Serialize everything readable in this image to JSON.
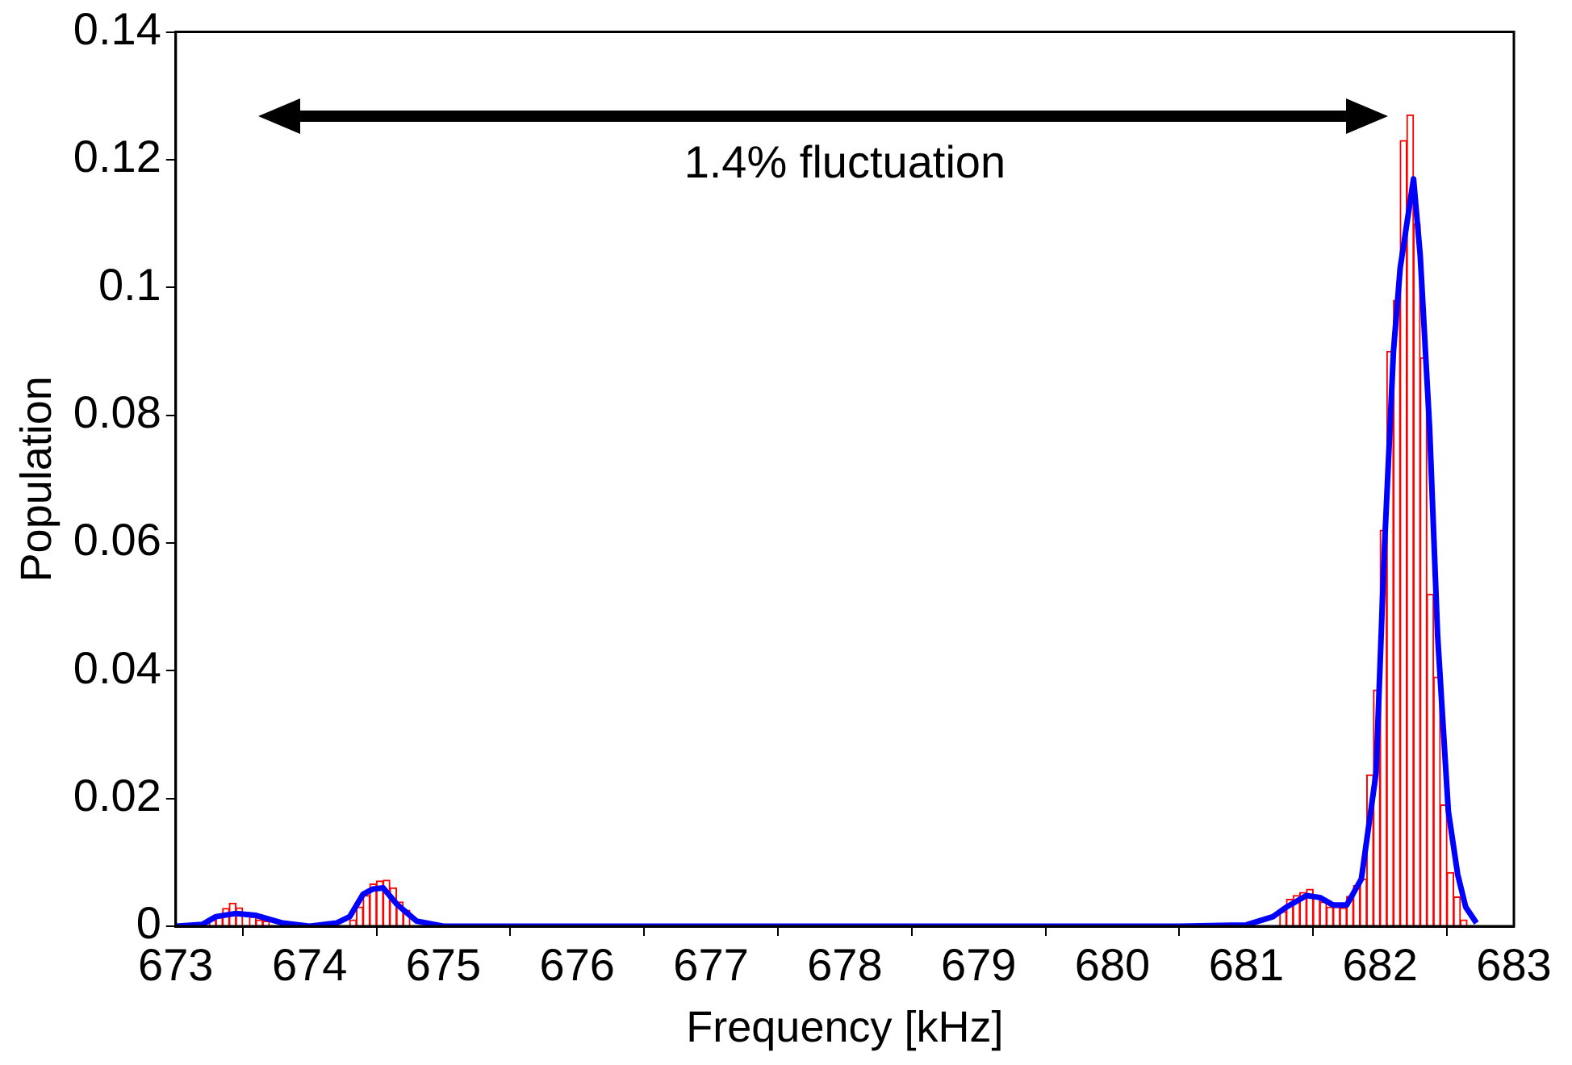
{
  "chart_data": {
    "type": "histogram",
    "xlabel": "Frequency [kHz]",
    "ylabel": "Population",
    "annotations": [
      "1.4% fluctuation"
    ],
    "xlim": [
      673,
      683
    ],
    "xticks": [
      673,
      674,
      675,
      676,
      677,
      678,
      679,
      680,
      681,
      682,
      683
    ],
    "ylim": [
      0,
      0.14
    ],
    "yticks": [
      0,
      0.02,
      0.04,
      0.06,
      0.08,
      0.1,
      0.12,
      0.14
    ],
    "marker": "none",
    "series": [
      {
        "color": "#ff0000",
        "bins": [
          673,
          673.05,
          673.1,
          673.15,
          673.2,
          673.25,
          673.3,
          673.35,
          673.4,
          673.45,
          673.5,
          673.55,
          673.6,
          673.65,
          673.7,
          673.75,
          673.8,
          673.85,
          673.9,
          673.95,
          674,
          674.05,
          674.1,
          674.15,
          674.2,
          674.25,
          674.3,
          674.35,
          674.4,
          674.45,
          674.5,
          674.55,
          674.6,
          674.65,
          674.7,
          674.75,
          674.8,
          674.85,
          674.9,
          674.95,
          675,
          675.05,
          675.1,
          675.15,
          675.2,
          675.25,
          675.3,
          675.35,
          675.4,
          675.45,
          675.5,
          675.55,
          675.6,
          675.65,
          675.7,
          675.75,
          675.8,
          675.85,
          675.9,
          675.95,
          676,
          676.05,
          676.1,
          676.15,
          676.2,
          676.25,
          676.3,
          676.35,
          676.4,
          676.45,
          676.5,
          676.55,
          676.6,
          676.65,
          676.7,
          676.75,
          676.8,
          676.85,
          676.9,
          676.95,
          677,
          677.05,
          677.1,
          677.15,
          677.2,
          677.25,
          677.3,
          677.35,
          677.4,
          677.45,
          677.5,
          677.55,
          677.6,
          677.65,
          677.7,
          677.75,
          677.8,
          677.85,
          677.9,
          677.95,
          678,
          678.05,
          678.1,
          678.15,
          678.2,
          678.25,
          678.3,
          678.35,
          678.4,
          678.45,
          678.5,
          678.55,
          678.6,
          678.65,
          678.7,
          678.75,
          678.8,
          678.85,
          678.9,
          678.95,
          679,
          679.05,
          679.1,
          679.15,
          679.2,
          679.25,
          679.3,
          679.35,
          679.4,
          679.45,
          679.5,
          679.55,
          679.6,
          679.65,
          679.7,
          679.75,
          679.8,
          679.85,
          679.9,
          679.95,
          680,
          680.05,
          680.1,
          680.15,
          680.2,
          680.25,
          680.3,
          680.35,
          680.4,
          680.45,
          680.5,
          680.55,
          680.6,
          680.65,
          680.7,
          680.75,
          680.8,
          680.85,
          680.9,
          680.95,
          681,
          681.05,
          681.1,
          681.15,
          681.2,
          681.25,
          681.3,
          681.35,
          681.4,
          681.45,
          681.5,
          681.55,
          681.6,
          681.65,
          681.7,
          681.75,
          681.8,
          681.85,
          681.9,
          681.95,
          682,
          682.05,
          682.1,
          682.15,
          682.2,
          682.25,
          682.3,
          682.35,
          682.4,
          682.45,
          682.5,
          682.55,
          682.6,
          682.65,
          682.7
        ],
        "values": [
          null,
          null,
          null,
          null,
          null,
          0.001,
          0.0015,
          0.0028,
          0.0036,
          0.0029,
          null,
          0.0015,
          0.001,
          0.0008,
          null,
          null,
          null,
          null,
          null,
          null,
          null,
          null,
          null,
          null,
          null,
          null,
          0.001,
          0.003,
          0.0048,
          0.0066,
          0.0071,
          0.0072,
          0.006,
          0.0038,
          0.0025,
          null,
          null,
          null,
          null,
          null,
          0,
          0,
          0,
          0,
          0,
          0,
          0,
          0,
          0,
          0,
          0,
          0,
          0,
          0,
          0,
          0,
          0,
          0,
          0,
          0,
          0,
          0,
          0,
          0,
          0,
          0,
          0,
          0,
          0,
          0,
          0,
          0,
          0,
          0,
          0,
          0,
          0,
          0,
          0,
          0,
          0,
          0,
          0,
          0,
          0,
          0,
          0,
          0,
          0,
          0,
          0,
          0,
          0,
          0,
          0,
          0,
          0,
          0,
          0,
          0,
          0,
          0,
          0,
          0,
          0,
          0,
          0,
          0,
          0,
          0,
          0,
          0,
          0,
          0,
          0,
          0,
          0,
          0,
          0,
          0,
          0,
          0,
          0,
          0,
          0,
          0,
          0,
          0,
          0,
          0,
          0,
          0,
          0,
          0,
          0,
          0,
          0,
          0,
          0,
          0,
          0,
          0,
          0,
          0,
          0,
          0,
          0,
          0,
          0,
          0,
          0,
          0,
          0,
          0,
          0,
          0,
          0,
          0,
          0,
          0,
          0,
          0,
          0,
          0,
          0,
          0.0023,
          0.0042,
          0.0048,
          0.0053,
          0.0058,
          0.0046,
          0.0038,
          0.003,
          0.003,
          0.0029,
          0.0047,
          0.0064,
          0.0074,
          0.0237,
          0.037,
          0.062,
          0.09,
          0.098,
          0.123,
          0.127,
          0.11,
          0.089,
          0.052,
          0.039,
          0.019,
          0.0084,
          0.0046,
          0.001,
          null
        ]
      },
      {
        "type": "line",
        "color": "#0000ff",
        "x": [
          673,
          673.2,
          673.3,
          673.45,
          673.6,
          673.8,
          674,
          674.2,
          674.3,
          674.4,
          674.47,
          674.55,
          674.65,
          674.8,
          675,
          680.5,
          681,
          681.2,
          681.3,
          681.45,
          681.55,
          681.65,
          681.75,
          681.86,
          681.97,
          682.03,
          682.1,
          682.15,
          682.25,
          682.3,
          682.37,
          682.43,
          682.51,
          682.58,
          682.64,
          682.72
        ],
        "values": [
          0,
          0.0003,
          0.0015,
          0.002,
          0.0017,
          0.0005,
          0,
          0.0005,
          0.0015,
          0.005,
          0.0058,
          0.006,
          0.0035,
          0.0008,
          0,
          0,
          0.0002,
          0.0015,
          0.003,
          0.0048,
          0.0045,
          0.0033,
          0.0033,
          0.0074,
          0.024,
          0.058,
          0.09,
          0.103,
          0.117,
          0.105,
          0.078,
          0.0455,
          0.018,
          0.0081,
          0.003,
          0.0005
        ]
      }
    ]
  }
}
